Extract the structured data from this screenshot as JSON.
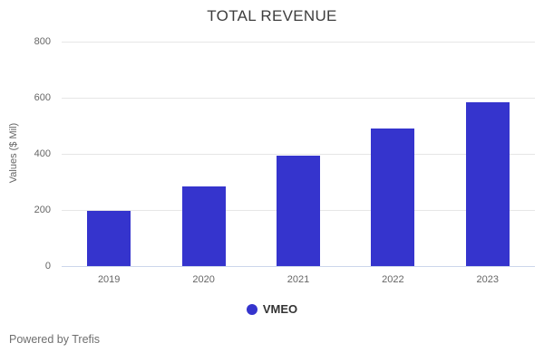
{
  "chart": {
    "footer": "Powered by Trefis"
  },
  "chart_data": {
    "type": "bar",
    "title": "TOTAL REVENUE",
    "categories": [
      "2019",
      "2020",
      "2021",
      "2022",
      "2023"
    ],
    "series": [
      {
        "name": "VMEO",
        "values": [
          196,
          283,
          392,
          490,
          585
        ],
        "color": "#3534cd"
      }
    ],
    "xlabel": "",
    "ylabel": "Values ($ Mil)",
    "ylim": [
      0,
      800
    ],
    "yticks": [
      0,
      200,
      400,
      600,
      800
    ],
    "grid": true,
    "gridline_color": "#e6e6e6",
    "axis_line_color": "#ccd6eb",
    "tick_label_color": "#666666",
    "title_color": "#3d3d3d",
    "legend_position": "bottom"
  }
}
